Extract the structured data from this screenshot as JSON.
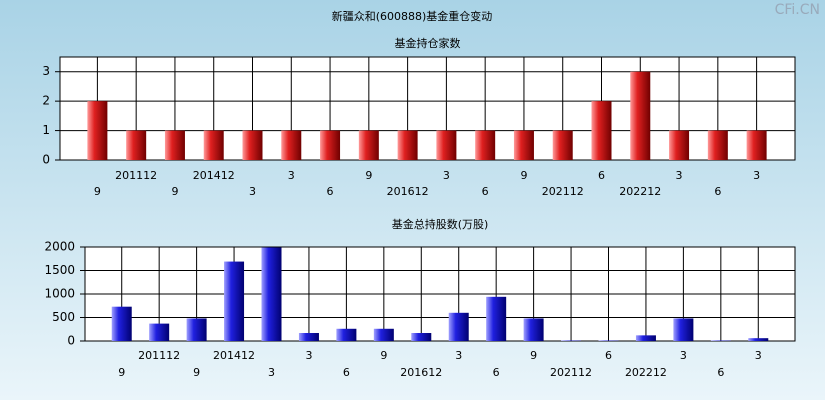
{
  "title": "新疆众和(600888)基金重仓变动",
  "watermark": "CFi.CN",
  "chart_data": [
    {
      "type": "bar",
      "title": "基金持仓家数",
      "categories": [
        "9",
        "201112",
        "9",
        "201412",
        "3",
        "3",
        "6",
        "9",
        "201612",
        "3",
        "6",
        "9",
        "202112",
        "6",
        "202212",
        "3",
        "6",
        "3"
      ],
      "values": [
        2,
        1,
        1,
        1,
        1,
        1,
        1,
        1,
        1,
        1,
        1,
        1,
        1,
        2,
        3,
        1,
        1,
        1
      ],
      "color": "#e02020",
      "ylim": [
        0,
        3.5
      ],
      "yticks": [
        0,
        1,
        2,
        3
      ],
      "grid": true
    },
    {
      "type": "bar",
      "title": "基金总持股数(万股)",
      "categories": [
        "9",
        "201112",
        "9",
        "201412",
        "3",
        "3",
        "6",
        "9",
        "201612",
        "3",
        "6",
        "9",
        "202112",
        "6",
        "202212",
        "3",
        "6",
        "3"
      ],
      "values": [
        730,
        370,
        480,
        1690,
        1990,
        170,
        260,
        260,
        170,
        600,
        940,
        480,
        10,
        10,
        120,
        480,
        10,
        60
      ],
      "color": "#2020e0",
      "ylim": [
        0,
        2000
      ],
      "yticks": [
        0,
        500,
        1000,
        1500,
        2000
      ],
      "grid": true
    }
  ]
}
